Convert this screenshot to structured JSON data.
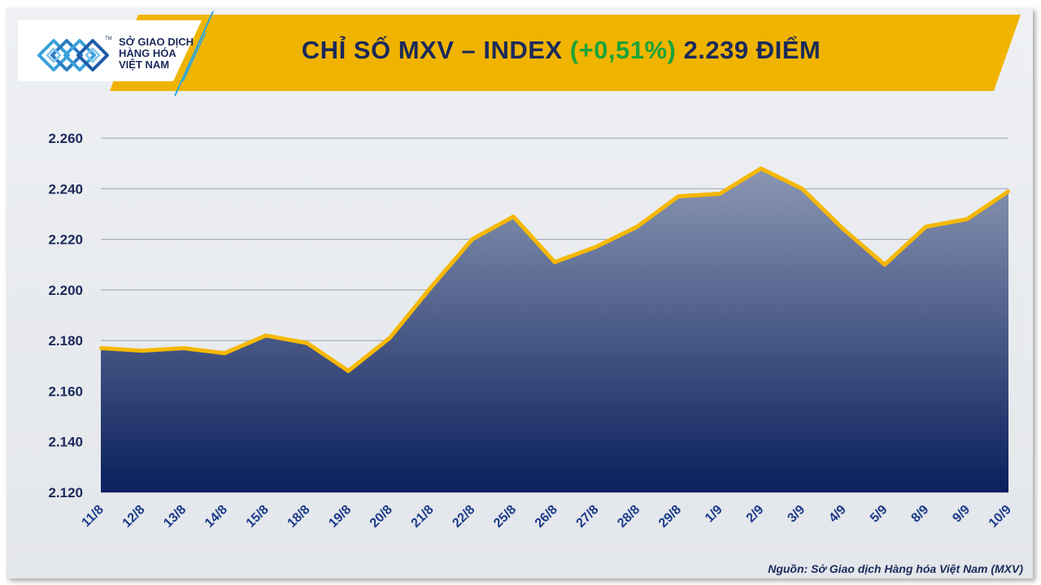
{
  "header": {
    "title_prefix": "CHỈ SỐ MXV – INDEX",
    "title_change": "(+0,51%)",
    "title_suffix": "2.239 ĐIỂM"
  },
  "logo": {
    "line1": "SỞ GIAO DỊCH",
    "line2": "HÀNG HÓA",
    "line3": "VIỆT NAM",
    "tm": "TM"
  },
  "colors": {
    "banner": "#f0b400",
    "title": "#1b2a5a",
    "change_up": "#1aa33a",
    "line": "#f5b800",
    "area_top": "#8b97b3",
    "area_bottom": "#0a1f5c",
    "grid": "#9aa3b5"
  },
  "chart_data": {
    "type": "area",
    "title": "CHỈ SỐ MXV – INDEX (+0,51%) 2.239 ĐIỂM",
    "categories": [
      "11/8",
      "12/8",
      "13/8",
      "14/8",
      "15/8",
      "18/8",
      "19/8",
      "20/8",
      "21/8",
      "22/8",
      "25/8",
      "26/8",
      "27/8",
      "28/8",
      "29/8",
      "1/9",
      "2/9",
      "3/9",
      "4/9",
      "5/9",
      "8/9",
      "9/9",
      "10/9"
    ],
    "values": [
      2177,
      2176,
      2177,
      2175,
      2182,
      2179,
      2168,
      2181,
      2201,
      2220,
      2229,
      2211,
      2217,
      2225,
      2237,
      2238,
      2248,
      2240,
      2224,
      2210,
      2225,
      2228,
      2239
    ],
    "ylim": [
      2120,
      2260
    ],
    "yticks": [
      2120,
      2140,
      2160,
      2180,
      2200,
      2220,
      2240,
      2260
    ],
    "ytick_labels": [
      "2.120",
      "2.140",
      "2.160",
      "2.180",
      "2.200",
      "2.220",
      "2.240",
      "2.260"
    ],
    "xlabel": "",
    "ylabel": "",
    "grid": true,
    "legend": "none"
  },
  "source": "Nguồn: Sở Giao dịch Hàng hóa Việt Nam (MXV)"
}
